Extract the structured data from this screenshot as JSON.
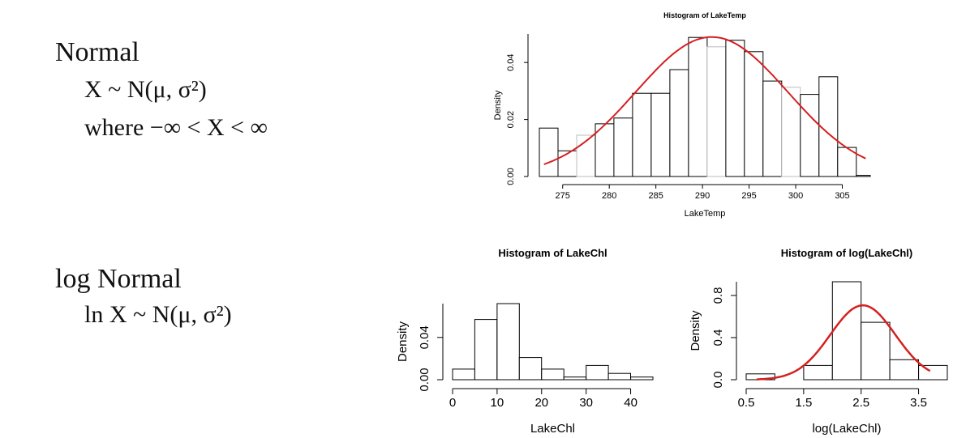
{
  "slide": {
    "normal_heading": "Normal",
    "normal_formula": "X ~ N(μ, σ²)",
    "normal_range": "where −∞ < X < ∞",
    "lognormal_heading": "log Normal",
    "lognormal_formula": "ln X ~ N(μ, σ²)"
  },
  "colors": {
    "curve": "#d42020",
    "bar_edge": "#000000",
    "bar_edge_light": "#bdbdbd"
  },
  "chart_data": [
    {
      "type": "bar",
      "title": "Histogram of LakeTemp",
      "xlabel": "LakeTemp",
      "ylabel": "Density",
      "xlim": [
        272.5,
        308
      ],
      "ylim": [
        0,
        0.05
      ],
      "xticks": [
        275,
        280,
        285,
        290,
        295,
        300,
        305
      ],
      "yticks": [
        0.0,
        0.02,
        0.04
      ],
      "ytick_labels": [
        "0.00",
        "0.02",
        "0.04"
      ],
      "bins": [
        [
          272.5,
          274.5,
          0.017
        ],
        [
          274.5,
          276.5,
          0.009
        ],
        [
          276.5,
          278.5,
          0.0145
        ],
        [
          278.5,
          280.5,
          0.0185
        ],
        [
          280.5,
          282.5,
          0.0205
        ],
        [
          282.5,
          284.5,
          0.0292
        ],
        [
          284.5,
          286.5,
          0.0292
        ],
        [
          286.5,
          288.5,
          0.0375
        ],
        [
          288.5,
          290.5,
          0.0488
        ],
        [
          290.5,
          292.5,
          0.0455
        ],
        [
          292.5,
          294.5,
          0.0478
        ],
        [
          294.5,
          296.5,
          0.0438
        ],
        [
          296.5,
          298.5,
          0.0335
        ],
        [
          298.5,
          300.5,
          0.0313
        ],
        [
          300.5,
          302.5,
          0.0288
        ],
        [
          302.5,
          304.5,
          0.035
        ],
        [
          304.5,
          306.5,
          0.0102
        ],
        [
          306.5,
          308.0,
          0.0004
        ]
      ],
      "curve": {
        "type": "normal",
        "mean": 291,
        "sd": 8.15,
        "xrange": [
          273,
          307.5
        ]
      },
      "grid": false,
      "legend": "none"
    },
    {
      "type": "bar",
      "title": "Histogram of LakeChl",
      "xlabel": "LakeChl",
      "ylabel": "Density",
      "xlim": [
        0,
        45
      ],
      "ylim": [
        0,
        0.072
      ],
      "xticks": [
        0,
        10,
        20,
        30,
        40
      ],
      "yticks": [
        0.0,
        0.04
      ],
      "ytick_labels": [
        "0.00",
        "0.04"
      ],
      "bins": [
        [
          0,
          5,
          0.01
        ],
        [
          5,
          10,
          0.057
        ],
        [
          10,
          15,
          0.072
        ],
        [
          15,
          20,
          0.021
        ],
        [
          20,
          25,
          0.01
        ],
        [
          25,
          30,
          0.0025
        ],
        [
          30,
          35,
          0.0135
        ],
        [
          35,
          40,
          0.006
        ],
        [
          40,
          45,
          0.0025
        ]
      ],
      "grid": false,
      "legend": "none"
    },
    {
      "type": "bar",
      "title": "Histogram of log(LakeChl)",
      "xlabel": "log(LakeChl)",
      "ylabel": "Density",
      "xlim": [
        0.5,
        4.0
      ],
      "ylim": [
        0,
        0.93
      ],
      "xticks": [
        0.5,
        1.5,
        2.5,
        3.5
      ],
      "yticks": [
        0.0,
        0.4,
        0.8
      ],
      "ytick_labels": [
        "0.0",
        "0.4",
        "0.8"
      ],
      "bins": [
        [
          0.5,
          1.0,
          0.055
        ],
        [
          1.0,
          1.5,
          0.0
        ],
        [
          1.5,
          2.0,
          0.135
        ],
        [
          2.0,
          2.5,
          0.93
        ],
        [
          2.5,
          3.0,
          0.545
        ],
        [
          3.0,
          3.5,
          0.19
        ],
        [
          3.5,
          4.0,
          0.135
        ]
      ],
      "curve": {
        "type": "normal",
        "mean": 2.53,
        "sd": 0.565,
        "xrange": [
          0.68,
          3.7
        ]
      },
      "grid": false,
      "legend": "none"
    }
  ]
}
